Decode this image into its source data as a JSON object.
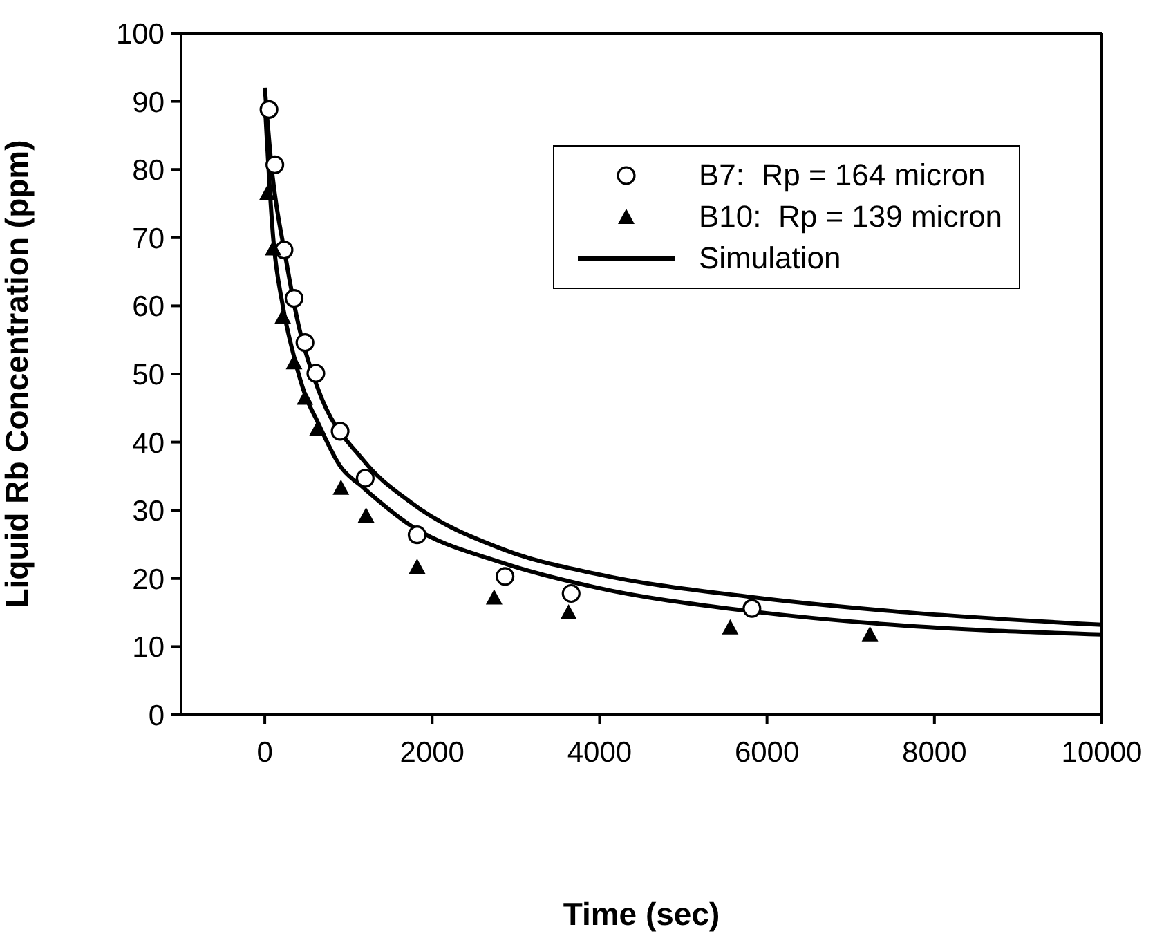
{
  "chart_data": {
    "type": "scatter",
    "xlabel": "Time (sec)",
    "ylabel": "Liquid Rb Concentration (ppm)",
    "xlim": [
      -1000,
      10000
    ],
    "xticks": [
      0,
      2000,
      4000,
      6000,
      8000,
      10000
    ],
    "ylim": [
      0,
      100
    ],
    "yticks": [
      0,
      10,
      20,
      30,
      40,
      50,
      60,
      70,
      80,
      90,
      100
    ],
    "legend": "top right",
    "series": [
      {
        "name": "B7:  Rp = 164 micron",
        "marker": "circle",
        "color": "#000000",
        "x": [
          50,
          120,
          230,
          350,
          480,
          610,
          900,
          1200,
          1820,
          2870,
          3660,
          5820
        ],
        "values": [
          88.8,
          80.7,
          68.2,
          61.1,
          54.6,
          50.1,
          41.6,
          34.7,
          26.4,
          20.3,
          17.8,
          15.6
        ]
      },
      {
        "name": "B10:  Rp = 139 micron",
        "marker": "triangle",
        "color": "#000000",
        "x": [
          30,
          100,
          215,
          350,
          480,
          630,
          910,
          1210,
          1820,
          2740,
          3630,
          5560,
          7230
        ],
        "values": [
          76.5,
          68.4,
          58.4,
          51.7,
          46.5,
          42,
          33.3,
          29.2,
          21.7,
          17.2,
          15,
          12.8,
          11.8
        ]
      },
      {
        "name": "Simulation",
        "type": "line",
        "marker": "none",
        "line_style": "solid",
        "color": "#000000",
        "x": [
          0,
          80,
          250,
          410,
          630,
          1180,
          1740,
          2840,
          3950,
          5800,
          7500,
          10000
        ],
        "values": [
          92,
          80.5,
          67,
          56.8,
          48,
          37.3,
          31.2,
          24.3,
          20.7,
          17.3,
          15.2,
          13.2
        ]
      },
      {
        "type": "line",
        "marker": "none",
        "line_style": "solid",
        "color": "#000000",
        "x": [
          0,
          100,
          215,
          350,
          480,
          630,
          900,
          1180,
          1740,
          2840,
          3950,
          5800,
          7500,
          10000
        ],
        "values": [
          90,
          70,
          60,
          52.5,
          47,
          43,
          36.5,
          33.3,
          27.8,
          22.3,
          18.7,
          15.2,
          13.2,
          11.8
        ]
      }
    ]
  }
}
